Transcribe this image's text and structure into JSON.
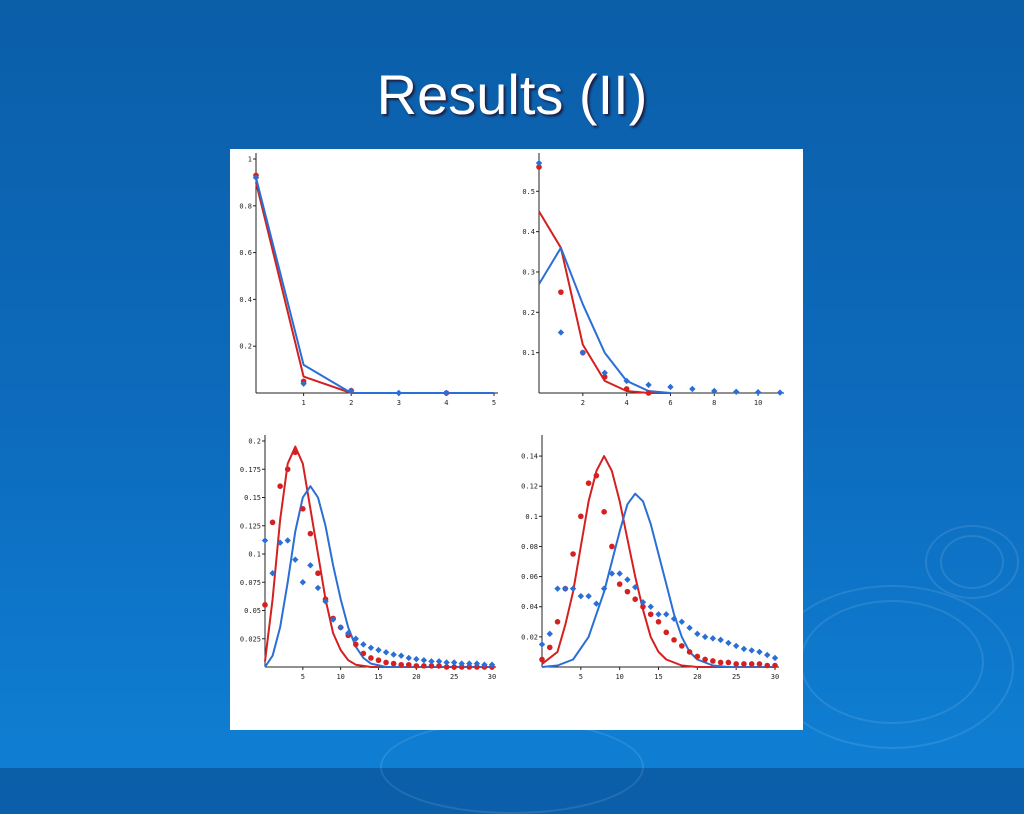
{
  "slide": {
    "title": "Results (II)"
  },
  "colors": {
    "red": "#d42020",
    "blue": "#2a6fd6",
    "background": "#0d6bbd"
  },
  "chart_data": [
    {
      "type": "line",
      "xlim": [
        0,
        5
      ],
      "ylim": [
        0,
        1
      ],
      "xticks": [
        1,
        2,
        3,
        4,
        5
      ],
      "yticks": [
        0.2,
        0.4,
        0.6,
        0.8,
        1
      ],
      "ytick_labels": [
        "0.2",
        "0.4",
        "0.6",
        "0.8",
        "1"
      ],
      "series": [
        {
          "color": "red",
          "kind": "line",
          "x": [
            0,
            1,
            2,
            3,
            4,
            5
          ],
          "y": [
            0.9,
            0.07,
            0,
            0,
            0,
            0
          ]
        },
        {
          "color": "blue",
          "kind": "line",
          "x": [
            0,
            1,
            2,
            3,
            4,
            5
          ],
          "y": [
            0.92,
            0.12,
            0,
            0,
            0,
            0
          ]
        },
        {
          "color": "red",
          "kind": "points",
          "x": [
            0,
            1,
            2,
            4
          ],
          "y": [
            0.93,
            0.05,
            0.01,
            0
          ]
        },
        {
          "color": "blue",
          "kind": "points",
          "x": [
            0,
            1,
            2,
            3,
            4
          ],
          "y": [
            0.92,
            0.04,
            0.01,
            0,
            0
          ]
        }
      ]
    },
    {
      "type": "line",
      "xlim": [
        0,
        11
      ],
      "ylim": [
        0,
        0.58
      ],
      "xticks": [
        2,
        4,
        6,
        8,
        10
      ],
      "yticks": [
        0.1,
        0.2,
        0.3,
        0.4,
        0.5
      ],
      "ytick_labels": [
        "0.1",
        "0.2",
        "0.3",
        "0.4",
        "0.5"
      ],
      "series": [
        {
          "color": "red",
          "kind": "line",
          "x": [
            0,
            1,
            2,
            3,
            4,
            5,
            6
          ],
          "y": [
            0.45,
            0.36,
            0.12,
            0.03,
            0.005,
            0,
            0
          ]
        },
        {
          "color": "blue",
          "kind": "line",
          "x": [
            0,
            1,
            2,
            3,
            4,
            5,
            6
          ],
          "y": [
            0.27,
            0.36,
            0.22,
            0.1,
            0.03,
            0.005,
            0
          ]
        },
        {
          "color": "red",
          "kind": "points",
          "x": [
            0,
            1,
            2,
            3,
            4,
            5
          ],
          "y": [
            0.56,
            0.25,
            0.1,
            0.04,
            0.01,
            0
          ]
        },
        {
          "color": "blue",
          "kind": "points",
          "x": [
            0,
            1,
            2,
            3,
            4,
            5,
            6,
            7,
            8,
            9,
            10,
            11
          ],
          "y": [
            0.57,
            0.15,
            0.1,
            0.05,
            0.03,
            0.02,
            0.015,
            0.01,
            0.005,
            0.003,
            0.002,
            0.001
          ]
        }
      ]
    },
    {
      "type": "line",
      "xlim": [
        0,
        30
      ],
      "ylim": [
        0,
        0.2
      ],
      "xticks": [
        5,
        10,
        15,
        20,
        25,
        30
      ],
      "yticks": [
        0.025,
        0.05,
        0.075,
        0.1,
        0.125,
        0.15,
        0.175,
        0.2
      ],
      "ytick_labels": [
        "0.025",
        "0.05",
        "0.075",
        "0.1",
        "0.125",
        "0.15",
        "0.175",
        "0.2"
      ],
      "series": [
        {
          "color": "red",
          "kind": "line",
          "x": [
            0,
            1,
            2,
            3,
            4,
            5,
            6,
            7,
            8,
            9,
            10,
            11,
            12,
            14,
            16,
            20,
            30
          ],
          "y": [
            0.005,
            0.06,
            0.13,
            0.18,
            0.195,
            0.18,
            0.14,
            0.1,
            0.06,
            0.03,
            0.015,
            0.006,
            0.002,
            0,
            0,
            0,
            0
          ]
        },
        {
          "color": "blue",
          "kind": "line",
          "x": [
            0,
            1,
            2,
            3,
            4,
            5,
            6,
            7,
            8,
            9,
            10,
            11,
            12,
            13,
            14,
            16,
            20,
            30
          ],
          "y": [
            0,
            0.01,
            0.035,
            0.075,
            0.12,
            0.15,
            0.16,
            0.15,
            0.125,
            0.09,
            0.06,
            0.035,
            0.018,
            0.008,
            0.003,
            0,
            0,
            0
          ]
        },
        {
          "color": "red",
          "kind": "points",
          "x": [
            0,
            1,
            2,
            3,
            4,
            5,
            6,
            7,
            8,
            9,
            10,
            11,
            12,
            13,
            14,
            15,
            16,
            17,
            18,
            19,
            20,
            21,
            22,
            23,
            24,
            25,
            26,
            27,
            28,
            29,
            30
          ],
          "y": [
            0.055,
            0.128,
            0.16,
            0.175,
            0.19,
            0.14,
            0.118,
            0.083,
            0.06,
            0.043,
            0.035,
            0.028,
            0.02,
            0.012,
            0.008,
            0.006,
            0.004,
            0.003,
            0.002,
            0.002,
            0.001,
            0.001,
            0.001,
            0.001,
            0,
            0,
            0,
            0,
            0,
            0,
            0
          ]
        },
        {
          "color": "blue",
          "kind": "points",
          "x": [
            0,
            1,
            2,
            3,
            4,
            5,
            6,
            7,
            8,
            9,
            10,
            11,
            12,
            13,
            14,
            15,
            16,
            17,
            18,
            19,
            20,
            21,
            22,
            23,
            24,
            25,
            26,
            27,
            28,
            29,
            30
          ],
          "y": [
            0.112,
            0.083,
            0.11,
            0.112,
            0.095,
            0.075,
            0.09,
            0.07,
            0.058,
            0.042,
            0.035,
            0.03,
            0.025,
            0.02,
            0.017,
            0.015,
            0.013,
            0.011,
            0.01,
            0.008,
            0.007,
            0.006,
            0.005,
            0.005,
            0.004,
            0.004,
            0.003,
            0.003,
            0.003,
            0.002,
            0.002
          ]
        }
      ]
    },
    {
      "type": "line",
      "xlim": [
        0,
        30
      ],
      "ylim": [
        0,
        0.15
      ],
      "xticks": [
        5,
        10,
        15,
        20,
        25,
        30
      ],
      "yticks": [
        0.02,
        0.04,
        0.06,
        0.08,
        0.1,
        0.12,
        0.14
      ],
      "ytick_labels": [
        "0.02",
        "0.04",
        "0.06",
        "0.08",
        "0.1",
        "0.12",
        "0.14"
      ],
      "series": [
        {
          "color": "red",
          "kind": "line",
          "x": [
            0,
            2,
            3,
            4,
            5,
            6,
            7,
            8,
            9,
            10,
            11,
            12,
            13,
            14,
            15,
            16,
            18,
            20,
            24,
            30
          ],
          "y": [
            0.002,
            0.01,
            0.028,
            0.05,
            0.08,
            0.11,
            0.13,
            0.14,
            0.13,
            0.11,
            0.085,
            0.06,
            0.038,
            0.02,
            0.01,
            0.005,
            0.001,
            0,
            0,
            0
          ]
        },
        {
          "color": "blue",
          "kind": "line",
          "x": [
            0,
            2,
            4,
            6,
            8,
            9,
            10,
            11,
            12,
            13,
            14,
            15,
            16,
            17,
            18,
            19,
            20,
            22,
            24,
            30
          ],
          "y": [
            0,
            0.001,
            0.005,
            0.02,
            0.05,
            0.07,
            0.09,
            0.108,
            0.115,
            0.11,
            0.095,
            0.075,
            0.055,
            0.035,
            0.02,
            0.01,
            0.005,
            0.001,
            0,
            0
          ]
        },
        {
          "color": "red",
          "kind": "points",
          "x": [
            0,
            1,
            2,
            3,
            4,
            5,
            6,
            7,
            8,
            9,
            10,
            11,
            12,
            13,
            14,
            15,
            16,
            17,
            18,
            19,
            20,
            21,
            22,
            23,
            24,
            25,
            26,
            27,
            28,
            29,
            30
          ],
          "y": [
            0.005,
            0.013,
            0.03,
            0.052,
            0.075,
            0.1,
            0.122,
            0.127,
            0.103,
            0.08,
            0.055,
            0.05,
            0.045,
            0.04,
            0.035,
            0.03,
            0.023,
            0.018,
            0.014,
            0.01,
            0.007,
            0.005,
            0.004,
            0.003,
            0.003,
            0.002,
            0.002,
            0.002,
            0.002,
            0.001,
            0.001
          ]
        },
        {
          "color": "blue",
          "kind": "points",
          "x": [
            0,
            1,
            2,
            3,
            4,
            5,
            6,
            7,
            8,
            9,
            10,
            11,
            12,
            13,
            14,
            15,
            16,
            17,
            18,
            19,
            20,
            21,
            22,
            23,
            24,
            25,
            26,
            27,
            28,
            29,
            30
          ],
          "y": [
            0.015,
            0.022,
            0.052,
            0.052,
            0.052,
            0.047,
            0.047,
            0.042,
            0.052,
            0.062,
            0.062,
            0.058,
            0.053,
            0.043,
            0.04,
            0.035,
            0.035,
            0.032,
            0.03,
            0.026,
            0.022,
            0.02,
            0.019,
            0.018,
            0.016,
            0.014,
            0.012,
            0.011,
            0.01,
            0.008,
            0.006
          ]
        }
      ]
    }
  ]
}
